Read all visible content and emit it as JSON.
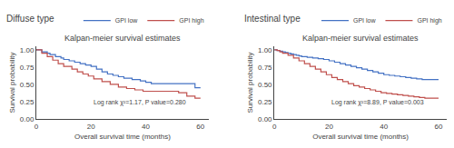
{
  "chart_data": [
    {
      "type": "step",
      "title": "Diffuse type",
      "subtitle": "Kalpan-meier survival estimates",
      "xlabel": "Overall survival time (months)",
      "ylabel": "Survival probability",
      "annotations": [
        "Log rank χ²=1.17, P value=0.280"
      ],
      "xlim": [
        0,
        63
      ],
      "xticks": [
        0,
        20,
        40,
        60
      ],
      "ylim": [
        0.0,
        1.05
      ],
      "yticks": [
        {
          "value": 0,
          "label": "0.00"
        },
        {
          "value": 0.25,
          "label": "0.25"
        },
        {
          "value": 0.5,
          "label": "0.50"
        },
        {
          "value": 0.75,
          "label": "0.75"
        },
        {
          "value": 1,
          "label": "1.00"
        }
      ],
      "legend": "upper right",
      "grid": false,
      "series": [
        {
          "name": "GPI low",
          "color": "#4472c4",
          "x": [
            0,
            2,
            4,
            5,
            7,
            9,
            10,
            12,
            14,
            16,
            18,
            20,
            22,
            24,
            26,
            28,
            30,
            32,
            35,
            38,
            40,
            42,
            45,
            50,
            55,
            58,
            60
          ],
          "values": [
            1.0,
            0.97,
            0.95,
            0.93,
            0.9,
            0.88,
            0.86,
            0.84,
            0.82,
            0.8,
            0.78,
            0.76,
            0.72,
            0.68,
            0.65,
            0.63,
            0.61,
            0.59,
            0.57,
            0.55,
            0.53,
            0.51,
            0.51,
            0.51,
            0.51,
            0.45,
            0.45
          ]
        },
        {
          "name": "GPI high",
          "color": "#c0504d",
          "x": [
            0,
            2,
            4,
            6,
            8,
            10,
            13,
            15,
            17,
            19,
            21,
            24,
            27,
            30,
            33,
            36,
            39,
            42,
            45,
            48,
            52,
            55,
            58,
            60
          ],
          "values": [
            1.0,
            0.95,
            0.9,
            0.85,
            0.8,
            0.76,
            0.72,
            0.68,
            0.65,
            0.62,
            0.58,
            0.54,
            0.5,
            0.46,
            0.44,
            0.42,
            0.4,
            0.4,
            0.4,
            0.4,
            0.38,
            0.33,
            0.3,
            0.3
          ]
        }
      ]
    },
    {
      "type": "step",
      "title": "Intestinal type",
      "subtitle": "Kalpan-meier survival estimates",
      "xlabel": "Overall survival time (months)",
      "ylabel": "Survival probability",
      "annotations": [
        "Log rank χ²=8.89, P value=0.003"
      ],
      "xlim": [
        0,
        63
      ],
      "xticks": [
        0,
        20,
        40,
        60
      ],
      "ylim": [
        0.0,
        1.05
      ],
      "yticks": [
        {
          "value": 0,
          "label": "0.00"
        },
        {
          "value": 0.25,
          "label": "0.25"
        },
        {
          "value": 0.5,
          "label": "0.50"
        },
        {
          "value": 0.75,
          "label": "0.75"
        },
        {
          "value": 1,
          "label": "1.00"
        }
      ],
      "legend": "upper right",
      "grid": false,
      "series": [
        {
          "name": "GPI low",
          "color": "#4472c4",
          "x": [
            0,
            1,
            2,
            3,
            4,
            5,
            6,
            7,
            8,
            9,
            10,
            12,
            14,
            16,
            18,
            20,
            22,
            24,
            26,
            28,
            30,
            32,
            34,
            36,
            38,
            40,
            42,
            44,
            46,
            48,
            50,
            52,
            54,
            56,
            58,
            60
          ],
          "values": [
            1.0,
            0.99,
            0.98,
            0.97,
            0.96,
            0.95,
            0.94,
            0.93,
            0.92,
            0.91,
            0.9,
            0.89,
            0.88,
            0.87,
            0.86,
            0.84,
            0.82,
            0.8,
            0.78,
            0.76,
            0.74,
            0.72,
            0.7,
            0.68,
            0.66,
            0.64,
            0.63,
            0.62,
            0.61,
            0.6,
            0.59,
            0.58,
            0.57,
            0.57,
            0.57,
            0.57
          ]
        },
        {
          "name": "GPI high",
          "color": "#c0504d",
          "x": [
            0,
            1,
            2,
            3,
            5,
            7,
            9,
            11,
            13,
            15,
            17,
            19,
            21,
            23,
            25,
            27,
            29,
            31,
            33,
            35,
            37,
            39,
            41,
            43,
            45,
            47,
            49,
            51,
            53,
            55,
            57,
            59,
            60
          ],
          "values": [
            1.0,
            0.99,
            0.97,
            0.95,
            0.92,
            0.88,
            0.84,
            0.8,
            0.76,
            0.72,
            0.68,
            0.64,
            0.6,
            0.57,
            0.54,
            0.51,
            0.48,
            0.46,
            0.44,
            0.42,
            0.4,
            0.38,
            0.37,
            0.36,
            0.35,
            0.34,
            0.33,
            0.32,
            0.31,
            0.3,
            0.3,
            0.3,
            0.3
          ]
        }
      ]
    }
  ]
}
